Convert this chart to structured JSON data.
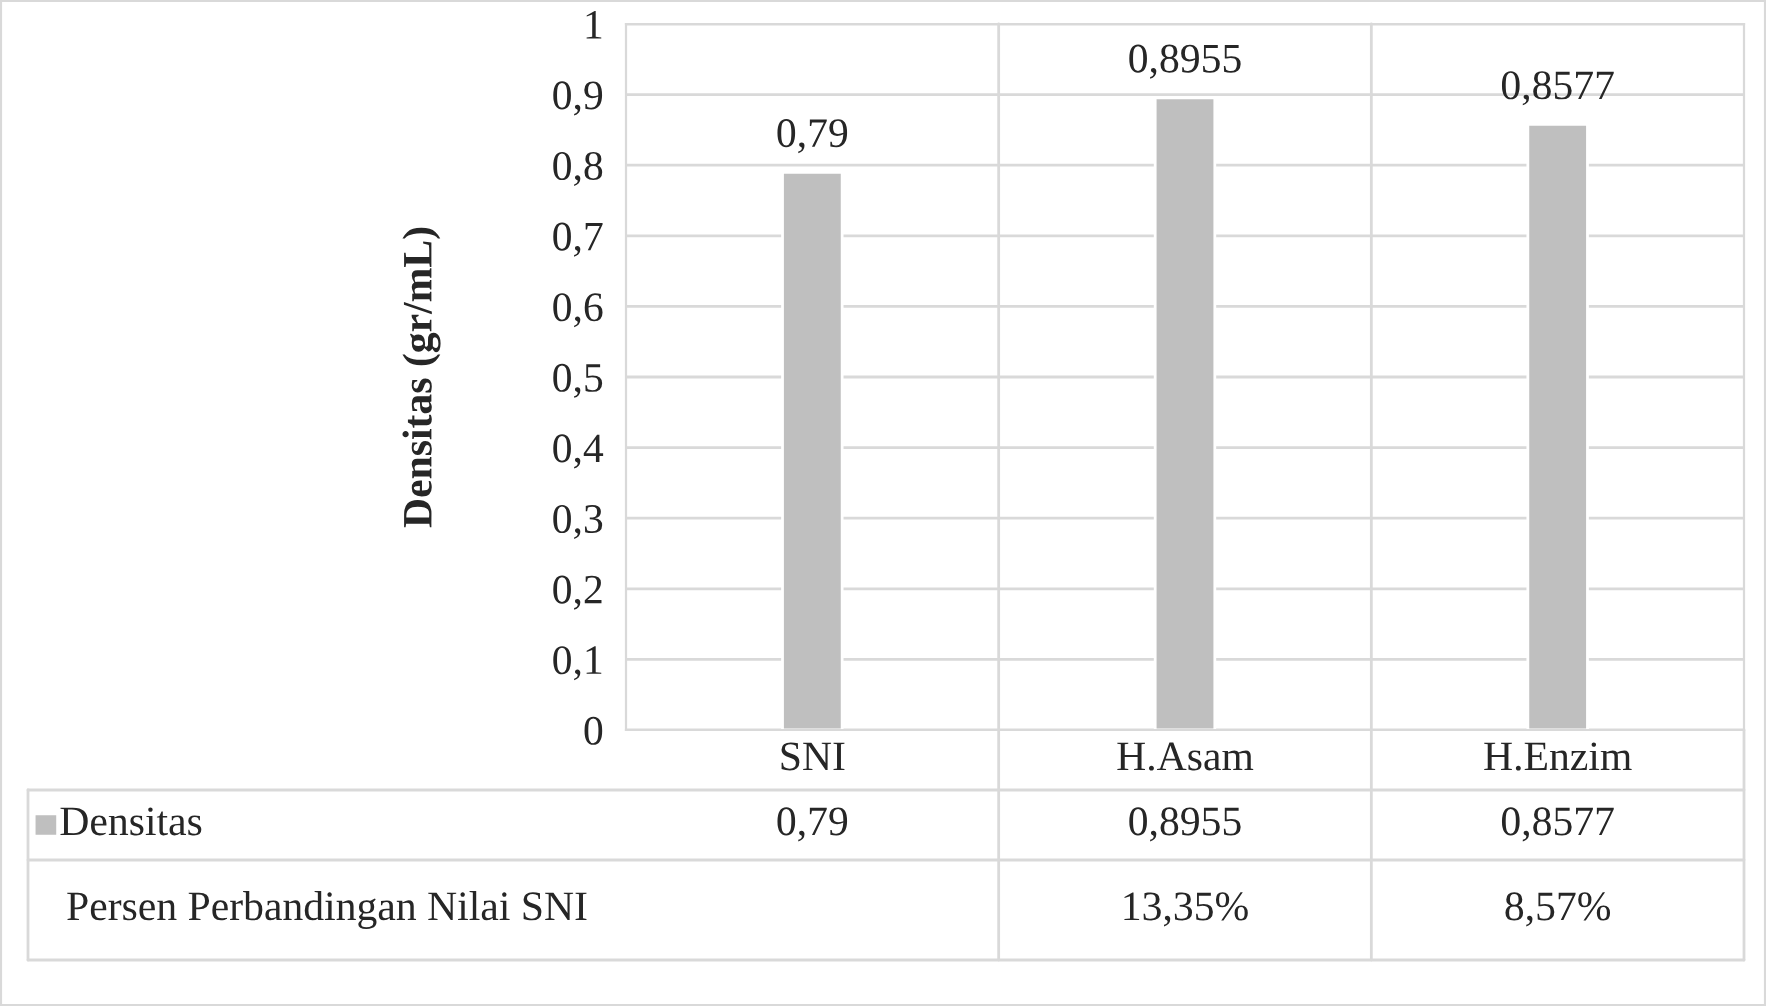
{
  "chart_data": {
    "type": "bar",
    "ylabel": "Densitas (gr/mL)",
    "categories": [
      "SNI",
      "H.Asam",
      "H.Enzim"
    ],
    "series": [
      {
        "name": "Densitas",
        "color": "#bfbfbf",
        "values": [
          0.79,
          0.8955,
          0.8577
        ],
        "value_labels": [
          "0,79",
          "0,8955",
          "0,8577"
        ]
      }
    ],
    "ylim": [
      0,
      1
    ],
    "yticks": [
      0,
      {
        "value": 0.1,
        "label": "0,1"
      },
      {
        "value": 0.2,
        "label": "0,2"
      },
      {
        "value": 0.3,
        "label": "0,3"
      },
      {
        "value": 0.4,
        "label": "0,4"
      },
      {
        "value": 0.5,
        "label": "0,5"
      },
      {
        "value": 0.6,
        "label": "0,6"
      },
      {
        "value": 0.7,
        "label": "0,7"
      },
      {
        "value": 0.8,
        "label": "0,8"
      },
      {
        "value": 0.9,
        "label": "0,9"
      },
      1
    ],
    "grid": "y",
    "legend": "bottom",
    "annotations": [
      "Persen Perbandingan Nilai SNI",
      "13,35%",
      "8,57%"
    ]
  }
}
